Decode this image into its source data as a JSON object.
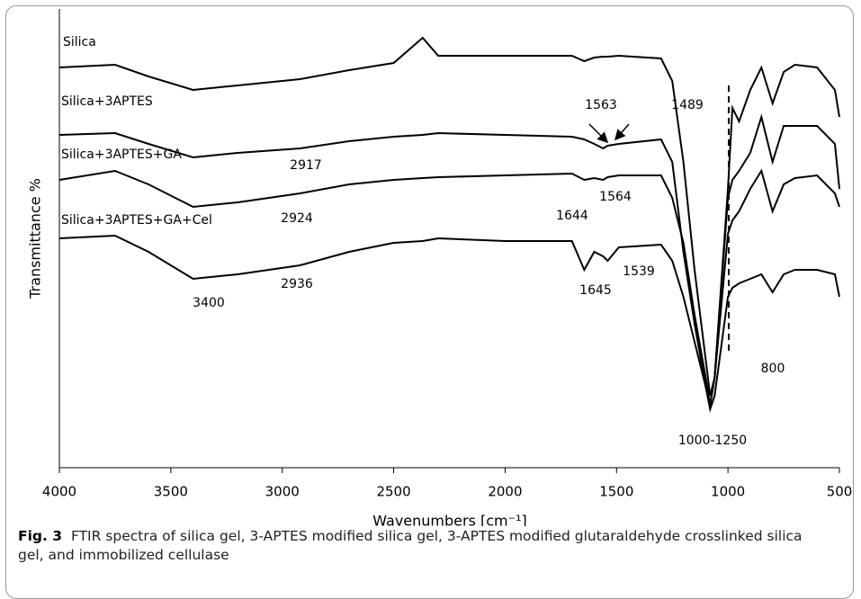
{
  "chart_data": {
    "type": "line",
    "x_label": "Wavenumbers [cm⁻¹]",
    "y_label": "Transmittance %",
    "caption": {
      "label": "Fig. 3",
      "text": "FTIR spectra of silica gel, 3-APTES modified silica gel, 3-APTES modified glutaraldehyde crosslinked silica gel, and immobilized cellulase"
    },
    "x": [
      4000,
      3750,
      3600,
      3400,
      3200,
      2920,
      2700,
      2500,
      2370,
      2300,
      2000,
      1700,
      1645,
      1600,
      1560,
      1540,
      1490,
      1300,
      1250,
      1200,
      1150,
      1100,
      1080,
      1060,
      1000,
      980,
      950,
      900,
      850,
      800,
      750,
      700,
      600,
      520,
      500
    ],
    "xlim": [
      4000,
      500
    ],
    "xticks": [
      4000,
      3500,
      3000,
      2500,
      2000,
      1500,
      1000,
      500
    ],
    "ylim": [
      0,
      102
    ],
    "series": [
      {
        "name": "Silica",
        "color": "#000000",
        "values": [
          89,
          89.6,
          87,
          84,
          85,
          86.4,
          88.4,
          90,
          95.6,
          91.6,
          91.6,
          91.6,
          90.4,
          91.2,
          91.4,
          91.4,
          91.6,
          91,
          86,
          68,
          44,
          24,
          16,
          20,
          62,
          80,
          77,
          84,
          89,
          81,
          88,
          89.6,
          89,
          84,
          78
        ]
      },
      {
        "name": "Silica+3APTES",
        "color": "#000000",
        "values": [
          74,
          74.4,
          72,
          69,
          70,
          71,
          72.6,
          73.6,
          74,
          74.4,
          74,
          73.6,
          73,
          72,
          71,
          71.6,
          72,
          73,
          68,
          48,
          32,
          18,
          14,
          20,
          60,
          64,
          66,
          70,
          78,
          68,
          76,
          76,
          76,
          72,
          62
        ]
      },
      {
        "name": "Silica+3APTES+GA",
        "color": "#000000",
        "values": [
          64,
          66,
          63,
          58,
          59,
          61,
          63,
          64,
          64.4,
          64.6,
          65,
          65.4,
          64,
          64.4,
          64,
          64.6,
          65,
          65,
          60,
          50,
          34,
          20,
          14,
          20,
          52,
          55,
          57,
          62,
          66,
          57,
          63,
          64.4,
          65,
          61,
          58
        ]
      },
      {
        "name": "Silica+3APTES+GA+Cel",
        "color": "#000000",
        "values": [
          51,
          51.6,
          48,
          42,
          43,
          45,
          48,
          50,
          50.4,
          51,
          50.4,
          50.4,
          44,
          48,
          47,
          46,
          49,
          49.6,
          46,
          38,
          28,
          18,
          13,
          16,
          38,
          40,
          41,
          42,
          43,
          39,
          43,
          44,
          44,
          43,
          38
        ]
      }
    ],
    "annotations": [
      "1563",
      "1489",
      "2917",
      "1644",
      "1564",
      "2924",
      "3400",
      "2936",
      "1645",
      "1539",
      "800",
      "1000-1250"
    ]
  }
}
